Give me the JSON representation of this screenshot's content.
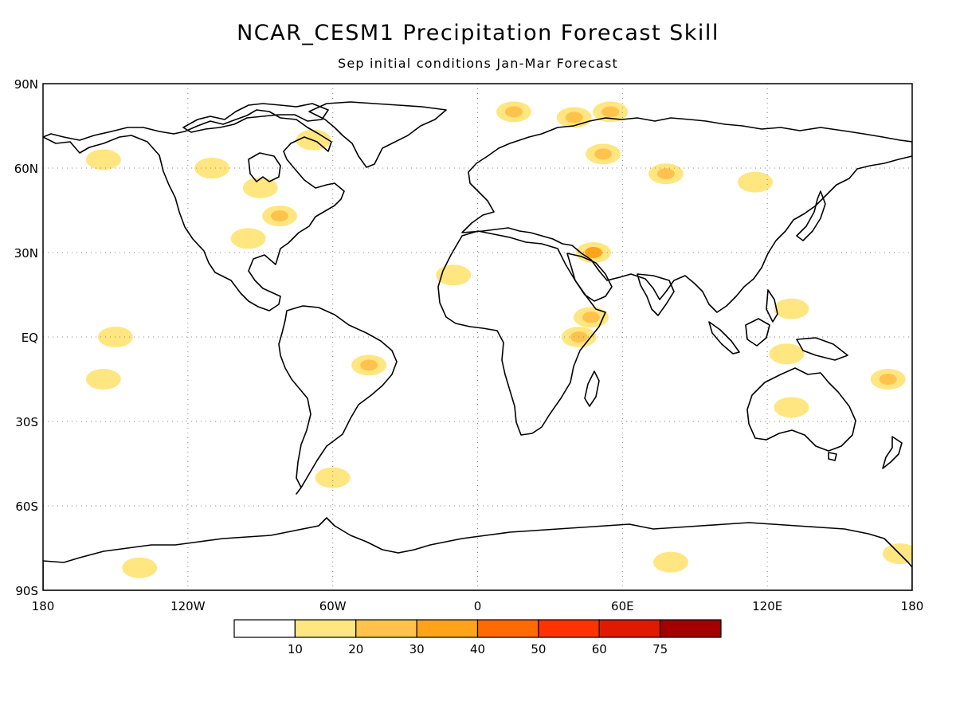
{
  "title": "NCAR_CESM1 Precipitation Forecast Skill",
  "subtitle": "Sep initial conditions  Jan-Mar Forecast",
  "lat_labels": [
    "90N",
    "60N",
    "30N",
    "EQ",
    "30S",
    "60S",
    "90S"
  ],
  "lon_labels": [
    "180",
    "120W",
    "60W",
    "0",
    "60E",
    "120E",
    "180"
  ],
  "colorbar": {
    "labels": [
      "10",
      "20",
      "30",
      "40",
      "50",
      "60",
      "75"
    ],
    "colors": [
      "#ffffff",
      "#ffe680",
      "#ffc34d",
      "#ffa31a",
      "#ff6b00",
      "#ff3300",
      "#e01a00",
      "#a50000"
    ]
  },
  "chart_data": {
    "type": "heatmap",
    "title": "NCAR_CESM1 Precipitation Forecast Skill",
    "subtitle": "Sep initial conditions  Jan-Mar Forecast",
    "xlim": [
      -180,
      180
    ],
    "ylim": [
      -90,
      90
    ],
    "grid": true,
    "levels": [
      10,
      20,
      30,
      40,
      50,
      60,
      75
    ],
    "skill_regions": [
      {
        "lon": -82,
        "lat": 43,
        "value": 22
      },
      {
        "lon": -90,
        "lat": 53,
        "value": 18
      },
      {
        "lon": -110,
        "lat": 60,
        "value": 15
      },
      {
        "lon": -95,
        "lat": 35,
        "value": 15
      },
      {
        "lon": -155,
        "lat": 63,
        "value": 15
      },
      {
        "lon": -68,
        "lat": 70,
        "value": 18
      },
      {
        "lon": 15,
        "lat": 80,
        "value": 20
      },
      {
        "lon": 40,
        "lat": 78,
        "value": 20
      },
      {
        "lon": 55,
        "lat": 80,
        "value": 25
      },
      {
        "lon": 52,
        "lat": 65,
        "value": 28
      },
      {
        "lon": 78,
        "lat": 58,
        "value": 20
      },
      {
        "lon": 115,
        "lat": 55,
        "value": 15
      },
      {
        "lon": 48,
        "lat": 30,
        "value": 30
      },
      {
        "lon": 47,
        "lat": 7,
        "value": 28
      },
      {
        "lon": 42,
        "lat": 0,
        "value": 20
      },
      {
        "lon": -10,
        "lat": 22,
        "value": 15
      },
      {
        "lon": 130,
        "lat": 10,
        "value": 15
      },
      {
        "lon": 128,
        "lat": -6,
        "value": 18
      },
      {
        "lon": 130,
        "lat": -25,
        "value": 18
      },
      {
        "lon": 170,
        "lat": -15,
        "value": 20
      },
      {
        "lon": -45,
        "lat": -10,
        "value": 20
      },
      {
        "lon": -155,
        "lat": -15,
        "value": 18
      },
      {
        "lon": -150,
        "lat": 0,
        "value": 15
      },
      {
        "lon": -60,
        "lat": -50,
        "value": 15
      },
      {
        "lon": -140,
        "lat": -82,
        "value": 12
      },
      {
        "lon": 80,
        "lat": -80,
        "value": 15
      },
      {
        "lon": 175,
        "lat": -77,
        "value": 12
      }
    ]
  }
}
